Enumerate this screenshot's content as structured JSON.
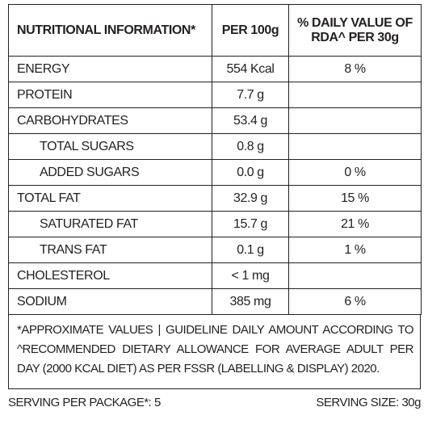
{
  "header": {
    "nutrient": "NUTRITIONAL INFORMATION*",
    "per_100g": "PER 100g",
    "rda": "% DAILY VALUE OF RDA^ PER 30g"
  },
  "rows": [
    {
      "nutrient": "ENERGY",
      "per_100g": "554 Kcal",
      "rda": "8 %"
    },
    {
      "nutrient": "PROTEIN",
      "per_100g": "7.7 g"
    },
    {
      "nutrient": "CARBOHYDRATES",
      "per_100g": "53.4 g"
    },
    {
      "nutrient": "TOTAL SUGARS",
      "per_100g": "0.8 g",
      "sub": true
    },
    {
      "nutrient": "ADDED SUGARS",
      "per_100g": "0.0 g",
      "rda": "0 %",
      "sub": true
    },
    {
      "nutrient": "TOTAL FAT",
      "per_100g": "32.9 g",
      "rda": "15 %"
    },
    {
      "nutrient": "SATURATED FAT",
      "per_100g": "15.7 g",
      "rda": "21 %",
      "sub": true
    },
    {
      "nutrient": "TRANS FAT",
      "per_100g": "0.1 g",
      "rda": "1 %",
      "sub": true
    },
    {
      "nutrient": "CHOLESTEROL",
      "per_100g": "< 1 mg"
    },
    {
      "nutrient": "SODIUM",
      "per_100g": "385 mg",
      "rda": "6 %"
    }
  ],
  "note": "*APPROXIMATE VALUES | GUIDELINE DAILY AMOUNT ACCORDING TO ^RECOMMENDED DIETARY ALLOWANCE FOR AVERAGE ADULT PER DAY (2000 KCAL DIET) AS PER FSSR (LABELLING & DISPLAY) 2020.",
  "footer": {
    "serving_per_package": "SERVING PER PACKAGE*: 5",
    "serving_size": "SERVING SIZE: 30g"
  }
}
